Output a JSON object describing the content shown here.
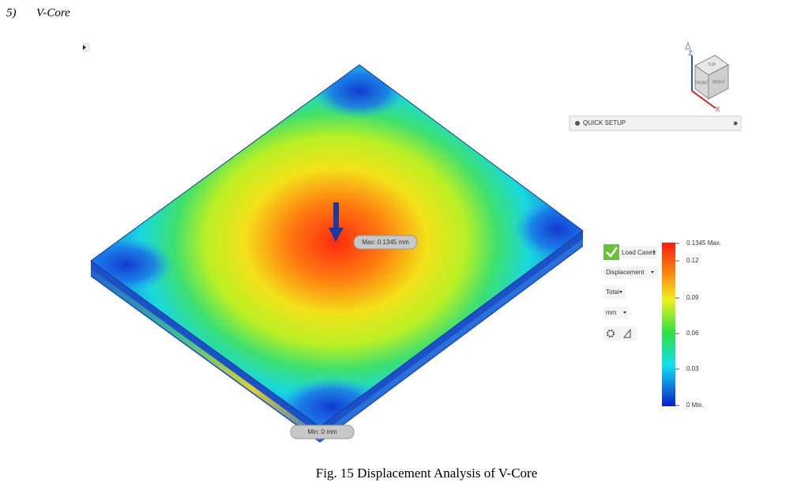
{
  "heading": {
    "number": "5)",
    "title": "V-Core"
  },
  "viewport": {
    "max_label": "Max: 0.1345 mm",
    "min_label": "Min: 0 mm"
  },
  "view_cube": {
    "top": "TOP",
    "front": "FRONT",
    "right": "RIGHT",
    "z_axis": "Z",
    "x_axis": "X"
  },
  "quick_setup": "QUICK SETUP",
  "results_panel": {
    "load_case": "Load Case1",
    "result_type": "Displacement",
    "component": "Total",
    "unit": "mm"
  },
  "legend": {
    "labels": [
      "0.1345 Max.",
      "0.12",
      "0.09",
      "0.06",
      "0.03",
      "0 Min."
    ]
  },
  "caption": "Fig. 15 Displacement Analysis of V-Core"
}
